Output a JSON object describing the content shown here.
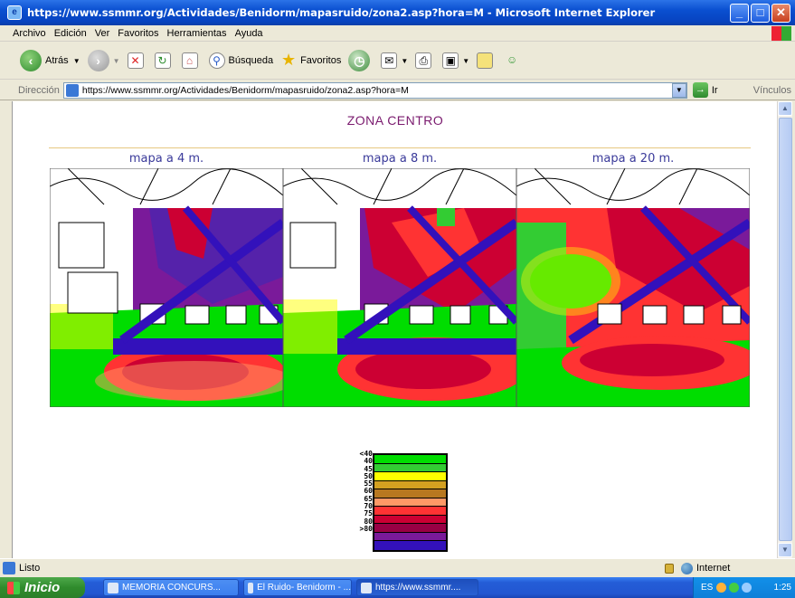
{
  "window": {
    "title": "https://www.ssmmr.org/Actividades/Benidorm/mapasruido/zona2.asp?hora=M - Microsoft Internet Explorer"
  },
  "menu": [
    "Archivo",
    "Edición",
    "Ver",
    "Favoritos",
    "Herramientas",
    "Ayuda"
  ],
  "toolbar": {
    "back_label": "Atrás",
    "search_label": "Búsqueda",
    "favorites_label": "Favoritos"
  },
  "address": {
    "label": "Dirección",
    "url": "https://www.ssmmr.org/Actividades/Benidorm/mapasruido/zona2.asp?hora=M",
    "go_label": "Ir",
    "links_label": "Vínculos"
  },
  "page": {
    "title": "ZONA CENTRO",
    "maps": [
      {
        "caption": "mapa a 4 m."
      },
      {
        "caption": "mapa a 8 m."
      },
      {
        "caption": "mapa a 20 m."
      }
    ],
    "legend": {
      "labels": [
        "<40",
        "40",
        "45",
        "50",
        "55",
        "60",
        "65",
        "70",
        "75",
        "80",
        ">80"
      ],
      "colors": [
        "#00dd00",
        "#33cc33",
        "#ffff00",
        "#d4a020",
        "#b87820",
        "#ff9966",
        "#ff3333",
        "#cc0033",
        "#990044",
        "#7a1a9a",
        "#3311bb"
      ]
    }
  },
  "status": {
    "text": "Listo",
    "zone": "Internet"
  },
  "taskbar": {
    "start_label": "Inicio",
    "buttons": [
      "MEMORIA CONCURS...",
      "El Ruido- Benidorm - ...",
      "https://www.ssmmr...."
    ],
    "lang": "ES",
    "clock": "1:25"
  }
}
